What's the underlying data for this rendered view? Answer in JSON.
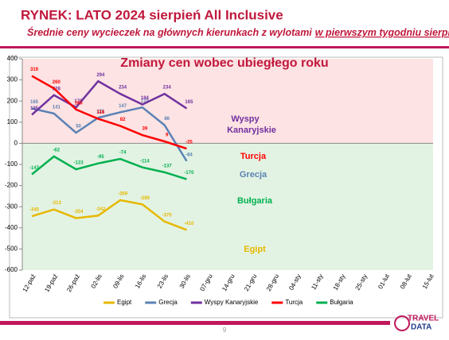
{
  "header": {
    "title": "RYNEK: LATO 2024 sierpień All Inclusive",
    "subtitle": "Średnie ceny wycieczek na głównych kierunkach z wylotami",
    "subtitle_underlined": "w pierwszym tygodniu sierpnia"
  },
  "chart_data": {
    "type": "line",
    "title": "Zmiany cen wobec ubiegłego roku",
    "categories": [
      "12-paź",
      "19-paź",
      "26-paź",
      "02-lis",
      "09-lis",
      "16-lis",
      "23-lis",
      "30-lis",
      "07-gru",
      "14-gru",
      "21-gru",
      "28-gru",
      "04-sty",
      "11-sty",
      "18-sty",
      "25-sty",
      "01-lut",
      "08-lut",
      "15-lut"
    ],
    "series": [
      {
        "name": "Egipt",
        "color": "#e6b800",
        "values": [
          -345,
          -313,
          -354,
          -342,
          -269,
          -289,
          -370,
          -410,
          null,
          null,
          null,
          null,
          null,
          null,
          null,
          null,
          null,
          null,
          null
        ]
      },
      {
        "name": "Grecja",
        "color": "#5b82b5",
        "values": [
          165,
          141,
          50,
          121,
          147,
          170,
          86,
          -84,
          null,
          null,
          null,
          null,
          null,
          null,
          null,
          null,
          null,
          null,
          null
        ]
      },
      {
        "name": "Wyspy Kanaryjskie",
        "color": "#7030a0",
        "values": [
          135,
          228,
          170,
          294,
          234,
          184,
          234,
          165,
          null,
          null,
          null,
          null,
          null,
          null,
          null,
          null,
          null,
          null,
          null
        ]
      },
      {
        "name": "Turcja",
        "color": "#ff0000",
        "values": [
          319,
          260,
          160,
          116,
          82,
          39,
          9,
          -25,
          null,
          null,
          null,
          null,
          null,
          null,
          null,
          null,
          null,
          null,
          null
        ]
      },
      {
        "name": "Bułgaria",
        "color": "#00b050",
        "values": [
          -147,
          -62,
          -123,
          -95,
          -74,
          -114,
          -137,
          -170,
          null,
          null,
          null,
          null,
          null,
          null,
          null,
          null,
          null,
          null,
          null
        ]
      }
    ],
    "annotations": [
      "Wyspy",
      "Kanaryjskie",
      "Turcja",
      "Grecja",
      "Bułgaria",
      "Egipt"
    ],
    "ylim": [
      -600,
      400
    ],
    "yticks": [
      -600,
      -500,
      -400,
      -300,
      -200,
      -100,
      0,
      100,
      200,
      300,
      400
    ],
    "grid": false
  },
  "footer": {
    "page": "9",
    "logo_top": "TRAVEL",
    "logo_bottom": "DATA"
  }
}
